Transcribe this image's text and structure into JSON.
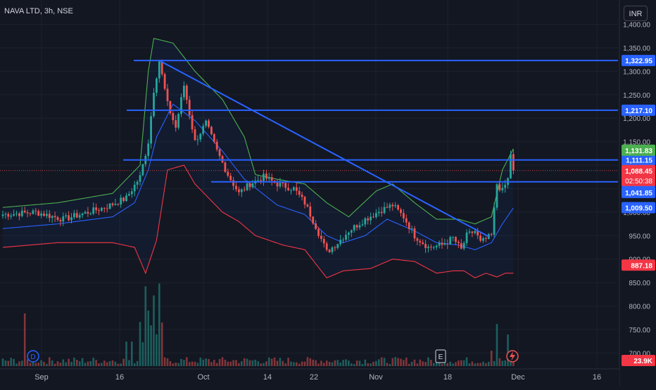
{
  "header": {
    "symbol": "NAVA LTD, 3h, NSE",
    "currency_button": "INR"
  },
  "colors": {
    "background": "#131722",
    "up": "#26a69a",
    "down": "#ef5350",
    "bb_upper": "#4caf50",
    "bb_lower": "#f23645",
    "bb_basis": "#2962ff",
    "level_line": "#2962ff",
    "trend_line": "#2962ff"
  },
  "chart_data": {
    "type": "candlestick",
    "x_ticks": [
      "Sep",
      "16",
      "Oct",
      "14",
      "22",
      "Nov",
      "18",
      "Dec",
      "16"
    ],
    "y_ticks": [
      "1,400.00",
      "1,350.00",
      "1,300.00",
      "1,250.00",
      "1,200.00",
      "1,150.00",
      "1,100.00",
      "1,050.00",
      "1,000.00",
      "950.00",
      "900.00",
      "850.00",
      "800.00",
      "750.00",
      "700.00"
    ],
    "y_range": [
      690,
      1410
    ],
    "level_lines": [
      {
        "value": 1322.95,
        "label": "1,322.95",
        "color": "#2962ff"
      },
      {
        "value": 1217.1,
        "label": "1,217.10",
        "color": "#2962ff"
      },
      {
        "value": 1111.15,
        "label": "1,111.15",
        "color": "#2962ff"
      },
      {
        "value": 1064.54,
        "label": "1,064.54",
        "color": "#2962ff"
      }
    ],
    "price_labels": [
      {
        "value": 1131.83,
        "label": "1,131.83",
        "color": "#4caf50"
      },
      {
        "value": 1088.45,
        "label": "1,088.45",
        "sub": "02:50:38",
        "color": "#f23645"
      },
      {
        "value": 1041.85,
        "label": "1,041.85",
        "color": "#2962ff"
      },
      {
        "value": 1009.5,
        "label": "1,009.50",
        "color": "#2962ff"
      },
      {
        "value": 887.18,
        "label": "887.18",
        "color": "#f23645"
      }
    ],
    "volume_label": "23.9K",
    "last_price": 1088.45,
    "trend_line": {
      "from": 1322.95,
      "to": 948
    },
    "events": [
      {
        "letter": "D"
      },
      {
        "letter": "E"
      }
    ],
    "anchors": [
      [
        0,
        995
      ],
      [
        12,
        1000
      ],
      [
        22,
        985
      ],
      [
        30,
        998
      ],
      [
        38,
        1012
      ],
      [
        45,
        1030
      ],
      [
        50,
        1075
      ],
      [
        53,
        1150
      ],
      [
        55,
        1260
      ],
      [
        57,
        1322
      ],
      [
        60,
        1230
      ],
      [
        63,
        1180
      ],
      [
        66,
        1270
      ],
      [
        70,
        1150
      ],
      [
        74,
        1190
      ],
      [
        78,
        1130
      ],
      [
        82,
        1080
      ],
      [
        86,
        1040
      ],
      [
        90,
        1060
      ],
      [
        95,
        1075
      ],
      [
        100,
        1060
      ],
      [
        106,
        1050
      ],
      [
        110,
        1020
      ],
      [
        114,
        970
      ],
      [
        118,
        915
      ],
      [
        122,
        935
      ],
      [
        126,
        960
      ],
      [
        132,
        985
      ],
      [
        138,
        1005
      ],
      [
        142,
        1015
      ],
      [
        146,
        990
      ],
      [
        150,
        950
      ],
      [
        155,
        925
      ],
      [
        160,
        930
      ],
      [
        164,
        945
      ],
      [
        167,
        920
      ],
      [
        169,
        950
      ],
      [
        172,
        960
      ],
      [
        174,
        935
      ],
      [
        178,
        950
      ],
      [
        180,
        1060
      ],
      [
        182,
        1045
      ],
      [
        184,
        1070
      ],
      [
        185,
        1125
      ],
      [
        186,
        1088
      ]
    ],
    "bb_upper_anchors": [
      [
        0,
        1010
      ],
      [
        20,
        1020
      ],
      [
        40,
        1040
      ],
      [
        50,
        1100
      ],
      [
        53,
        1300
      ],
      [
        55,
        1370
      ],
      [
        62,
        1360
      ],
      [
        70,
        1300
      ],
      [
        80,
        1240
      ],
      [
        88,
        1160
      ],
      [
        92,
        1080
      ],
      [
        100,
        1070
      ],
      [
        110,
        1060
      ],
      [
        118,
        1020
      ],
      [
        126,
        990
      ],
      [
        136,
        1045
      ],
      [
        142,
        1060
      ],
      [
        150,
        1020
      ],
      [
        158,
        985
      ],
      [
        166,
        985
      ],
      [
        172,
        975
      ],
      [
        178,
        990
      ],
      [
        182,
        1090
      ],
      [
        186,
        1135
      ]
    ],
    "bb_lower_anchors": [
      [
        0,
        925
      ],
      [
        20,
        935
      ],
      [
        40,
        935
      ],
      [
        48,
        925
      ],
      [
        52,
        870
      ],
      [
        56,
        940
      ],
      [
        60,
        1090
      ],
      [
        66,
        1100
      ],
      [
        70,
        1060
      ],
      [
        80,
        1000
      ],
      [
        86,
        980
      ],
      [
        92,
        950
      ],
      [
        102,
        930
      ],
      [
        110,
        920
      ],
      [
        118,
        860
      ],
      [
        124,
        875
      ],
      [
        134,
        880
      ],
      [
        142,
        900
      ],
      [
        150,
        895
      ],
      [
        158,
        870
      ],
      [
        164,
        875
      ],
      [
        168,
        875
      ],
      [
        172,
        860
      ],
      [
        176,
        870
      ],
      [
        180,
        862
      ],
      [
        183,
        870
      ],
      [
        186,
        870
      ]
    ],
    "bb_basis_anchors": [
      [
        0,
        965
      ],
      [
        20,
        975
      ],
      [
        40,
        990
      ],
      [
        48,
        1020
      ],
      [
        53,
        1090
      ],
      [
        56,
        1160
      ],
      [
        62,
        1230
      ],
      [
        70,
        1195
      ],
      [
        80,
        1130
      ],
      [
        88,
        1070
      ],
      [
        100,
        1015
      ],
      [
        110,
        995
      ],
      [
        118,
        950
      ],
      [
        124,
        935
      ],
      [
        132,
        950
      ],
      [
        140,
        985
      ],
      [
        150,
        960
      ],
      [
        158,
        935
      ],
      [
        166,
        930
      ],
      [
        172,
        920
      ],
      [
        178,
        935
      ],
      [
        182,
        975
      ],
      [
        186,
        1009
      ]
    ]
  }
}
